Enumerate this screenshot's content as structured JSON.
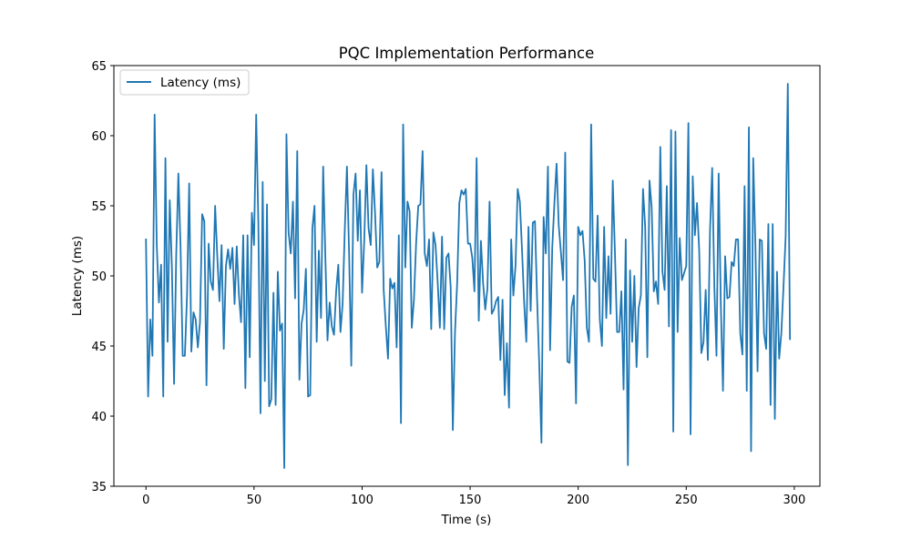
{
  "chart_data": {
    "type": "line",
    "title": "PQC Implementation Performance",
    "xlabel": "Time (s)",
    "ylabel": "Latency (ms)",
    "xlim": [
      -14.85,
      311.85
    ],
    "ylim": [
      35,
      65
    ],
    "xticks": [
      0,
      50,
      100,
      150,
      200,
      250,
      300
    ],
    "yticks": [
      35,
      40,
      45,
      50,
      55,
      60,
      65
    ],
    "legend": {
      "placement": "upper-left",
      "entries": [
        "Latency (ms)"
      ]
    },
    "grid": false,
    "colors": {
      "series": "#1f77b4",
      "axes": "#000000",
      "legend_border": "#cccccc"
    },
    "series": [
      {
        "name": "Latency (ms)",
        "x_start": 0,
        "x_step": 1,
        "values": [
          52.6,
          41.4,
          46.9,
          44.3,
          61.5,
          52.2,
          48.1,
          50.8,
          41.4,
          58.4,
          45.3,
          55.4,
          50.6,
          42.3,
          51.5,
          57.3,
          52.1,
          44.3,
          44.3,
          48.6,
          56.6,
          44.6,
          47.4,
          46.9,
          44.9,
          46.7,
          54.4,
          53.9,
          42.2,
          52.3,
          49.6,
          49.0,
          55.0,
          51.4,
          48.2,
          52.2,
          44.8,
          50.7,
          51.9,
          50.5,
          52.0,
          48.0,
          52.1,
          48.7,
          46.7,
          52.9,
          42.0,
          52.9,
          44.2,
          54.5,
          52.2,
          61.5,
          53.8,
          40.2,
          56.7,
          42.5,
          55.1,
          40.7,
          41.2,
          48.8,
          40.8,
          50.3,
          46.1,
          46.6,
          36.3,
          60.1,
          53.1,
          51.6,
          55.3,
          48.4,
          58.9,
          42.6,
          46.6,
          47.6,
          50.5,
          41.4,
          41.5,
          53.4,
          55.0,
          45.3,
          51.8,
          47.0,
          57.8,
          51.4,
          45.4,
          48.1,
          46.4,
          45.8,
          48.9,
          50.8,
          46.0,
          48.0,
          53.3,
          57.8,
          51.6,
          43.6,
          55.8,
          57.3,
          52.5,
          56.1,
          48.8,
          52.5,
          57.9,
          53.4,
          52.2,
          57.6,
          54.5,
          50.6,
          51.0,
          57.4,
          49.0,
          46.4,
          44.1,
          49.8,
          49.1,
          49.5,
          44.9,
          52.9,
          39.5,
          60.8,
          50.6,
          55.3,
          54.6,
          46.3,
          48.3,
          52.3,
          55.0,
          55.1,
          58.9,
          51.6,
          50.7,
          52.6,
          46.2,
          53.1,
          52.2,
          49.5,
          46.3,
          52.8,
          46.2,
          51.3,
          51.6,
          49.2,
          39.0,
          46.0,
          49.5,
          55.2,
          56.1,
          55.8,
          56.2,
          52.3,
          52.3,
          51.3,
          48.9,
          58.4,
          46.8,
          52.5,
          49.5,
          47.6,
          49.1,
          55.3,
          47.3,
          47.6,
          48.2,
          48.5,
          44.0,
          48.3,
          41.5,
          45.2,
          40.6,
          52.6,
          48.6,
          50.7,
          56.2,
          55.3,
          51.9,
          48.1,
          45.3,
          53.5,
          47.5,
          53.8,
          53.9,
          48.3,
          43.6,
          38.1,
          54.2,
          51.6,
          57.8,
          44.7,
          52.0,
          55.2,
          58.0,
          53.6,
          51.7,
          49.7,
          58.8,
          43.9,
          43.8,
          47.8,
          48.6,
          40.9,
          53.5,
          52.9,
          53.2,
          51.1,
          46.3,
          45.3,
          60.8,
          49.8,
          49.6,
          54.3,
          46.9,
          45.0,
          53.5,
          47.0,
          51.4,
          47.3,
          56.8,
          51.7,
          46.0,
          46.0,
          48.9,
          41.9,
          52.6,
          36.5,
          50.4,
          45.3,
          50.0,
          43.5,
          47.7,
          48.6,
          56.2,
          53.5,
          44.2,
          56.8,
          54.9,
          48.9,
          49.6,
          48.0,
          59.2,
          50.3,
          49.0,
          56.4,
          46.4,
          60.4,
          38.9,
          60.3,
          46.0,
          52.7,
          49.7,
          50.2,
          50.7,
          60.9,
          38.7,
          57.1,
          52.9,
          55.2,
          51.8,
          44.5,
          45.3,
          49.0,
          44.0,
          53.2,
          57.7,
          49.3,
          44.3,
          57.3,
          48.0,
          41.8,
          51.4,
          48.4,
          48.5,
          51.0,
          50.7,
          52.6,
          52.6,
          45.9,
          44.4,
          56.4,
          41.8,
          60.6,
          37.5,
          58.4,
          52.2,
          43.2,
          52.6,
          52.5,
          45.9,
          44.8,
          53.7,
          40.8,
          53.7,
          39.8,
          50.3,
          44.1,
          45.9,
          49.2,
          52.8,
          63.7,
          45.5
        ]
      }
    ]
  }
}
